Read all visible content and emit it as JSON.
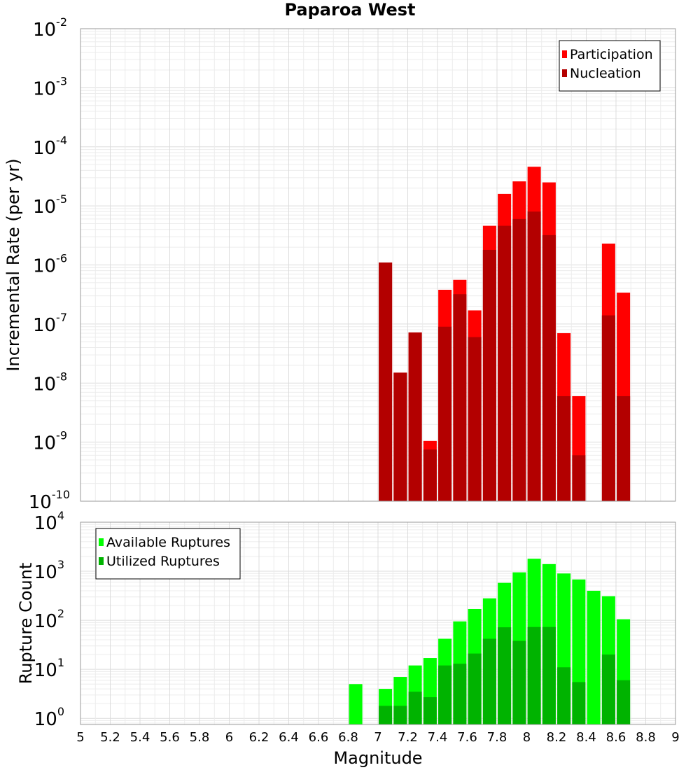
{
  "chart_data": [
    {
      "type": "bar",
      "title": "Paparoa West",
      "xlabel": "",
      "ylabel": "Incremental Rate (per yr)",
      "ylog": true,
      "ylim": [
        1e-10,
        0.01
      ],
      "xlim": [
        5,
        9
      ],
      "grid": true,
      "legend_position": "top-right",
      "x": [
        7.05,
        7.15,
        7.25,
        7.35,
        7.45,
        7.55,
        7.65,
        7.75,
        7.85,
        7.95,
        8.05,
        8.15,
        8.25,
        8.35,
        8.55,
        8.65
      ],
      "series": [
        {
          "name": "Participation",
          "color": "#ff0000",
          "values": [
            1.1e-06,
            1.5e-08,
            7.2e-08,
            1.05e-09,
            3.8e-07,
            5.6e-07,
            1.7e-07,
            4.6e-06,
            1.6e-05,
            2.6e-05,
            4.6e-05,
            2.5e-05,
            7e-08,
            6e-09,
            2.3e-06,
            3.4e-07
          ]
        },
        {
          "name": "Nucleation",
          "color": "#b30000",
          "values": [
            1.1e-06,
            1.5e-08,
            7.2e-08,
            7.5e-10,
            9e-08,
            3.2e-07,
            6e-08,
            1.8e-06,
            4.6e-06,
            6e-06,
            8e-06,
            3.2e-06,
            6e-09,
            6e-10,
            1.4e-07,
            6e-09
          ]
        }
      ]
    },
    {
      "type": "bar",
      "title": "",
      "xlabel": "Magnitude",
      "ylabel": "Rupture Count",
      "ylog": true,
      "ylim": [
        0.75,
        10000
      ],
      "xlim": [
        5,
        9
      ],
      "grid": true,
      "legend_position": "top-left",
      "x": [
        6.85,
        7.05,
        7.15,
        7.25,
        7.35,
        7.45,
        7.55,
        7.65,
        7.75,
        7.85,
        7.95,
        8.05,
        8.15,
        8.25,
        8.35,
        8.45,
        8.55,
        8.65
      ],
      "series": [
        {
          "name": "Available Ruptures",
          "color": "#00ff00",
          "values": [
            5,
            4,
            7,
            12,
            17,
            42,
            95,
            170,
            280,
            580,
            950,
            1800,
            1400,
            900,
            680,
            400,
            310,
            105
          ]
        },
        {
          "name": "Utilized Ruptures",
          "color": "#00b300",
          "values": [
            0,
            1.8,
            1.8,
            3.5,
            2.7,
            12,
            13,
            21,
            42,
            72,
            38,
            73,
            73,
            11,
            5.5,
            0,
            20,
            6
          ]
        }
      ]
    }
  ],
  "axis_ticks": {
    "x": [
      "5",
      "5.2",
      "5.4",
      "5.6",
      "5.8",
      "6",
      "6.2",
      "6.4",
      "6.6",
      "6.8",
      "7",
      "7.2",
      "7.4",
      "7.6",
      "7.8",
      "8",
      "8.2",
      "8.4",
      "8.6",
      "8.8",
      "9"
    ],
    "top_y_exponents": [
      "-2",
      "-3",
      "-4",
      "-5",
      "-6",
      "-7",
      "-8",
      "-9",
      "-10"
    ],
    "bottom_y_exponents": [
      "4",
      "3",
      "2",
      "1",
      "0"
    ],
    "y_base": "10"
  }
}
